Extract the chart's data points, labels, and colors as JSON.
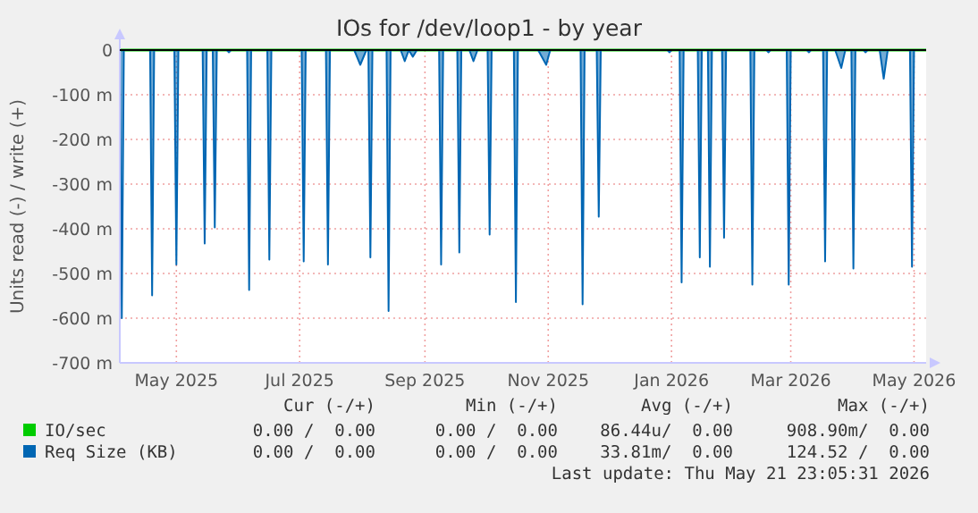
{
  "chart_data": {
    "type": "area",
    "title": "IOs for /dev/loop1 - by year",
    "ylabel": "Units read (-) / write (+)",
    "xlim": [
      "2025-04-03",
      "2026-05-07"
    ],
    "xticks": [
      {
        "value": "2025-05-01",
        "label": "May 2025"
      },
      {
        "value": "2025-07-01",
        "label": "Jul 2025"
      },
      {
        "value": "2025-09-01",
        "label": "Sep 2025"
      },
      {
        "value": "2025-11-01",
        "label": "Nov 2025"
      },
      {
        "value": "2026-01-01",
        "label": "Jan 2026"
      },
      {
        "value": "2026-03-01",
        "label": "Mar 2026"
      },
      {
        "value": "2026-05-01",
        "label": "May 2026"
      }
    ],
    "ylim": [
      -700,
      0
    ],
    "yticks": [
      {
        "value": 0,
        "label": "0"
      },
      {
        "value": -100,
        "label": "-100 m"
      },
      {
        "value": -200,
        "label": "-200 m"
      },
      {
        "value": -300,
        "label": "-300 m"
      },
      {
        "value": -400,
        "label": "-400 m"
      },
      {
        "value": -500,
        "label": "-500 m"
      },
      {
        "value": -600,
        "label": "-600 m"
      },
      {
        "value": -700,
        "label": "-700 m"
      }
    ],
    "grid": true,
    "legend": "bottom",
    "series": [
      {
        "name": "IO/sec",
        "color": "#00cc00",
        "type": "line",
        "x": [
          "2025-04-03",
          "2026-05-07"
        ],
        "values": [
          0,
          0
        ]
      },
      {
        "name": "Req Size (KB)",
        "color": "#0066b3",
        "x": [
          "2025-04-03",
          "2025-04-04",
          "2025-04-05",
          "2025-04-18",
          "2025-04-19",
          "2025-04-20",
          "2025-04-30",
          "2025-05-01",
          "2025-05-02",
          "2025-05-14",
          "2025-05-15",
          "2025-05-16",
          "2025-05-19",
          "2025-05-20",
          "2025-05-21",
          "2025-05-26",
          "2025-05-27",
          "2025-05-28",
          "2025-06-05",
          "2025-06-06",
          "2025-06-07",
          "2025-06-15",
          "2025-06-16",
          "2025-06-17",
          "2025-07-02",
          "2025-07-03",
          "2025-07-04",
          "2025-07-14",
          "2025-07-15",
          "2025-07-16",
          "2025-07-28",
          "2025-07-31",
          "2025-08-03",
          "2025-08-04",
          "2025-08-05",
          "2025-08-06",
          "2025-08-13",
          "2025-08-14",
          "2025-08-15",
          "2025-08-20",
          "2025-08-22",
          "2025-08-24",
          "2025-08-26",
          "2025-08-28",
          "2025-09-08",
          "2025-09-09",
          "2025-09-10",
          "2025-09-17",
          "2025-09-18",
          "2025-09-19",
          "2025-09-23",
          "2025-09-25",
          "2025-09-27",
          "2025-10-02",
          "2025-10-03",
          "2025-10-04",
          "2025-10-15",
          "2025-10-16",
          "2025-10-17",
          "2025-10-27",
          "2025-10-31",
          "2025-11-02",
          "2025-11-17",
          "2025-11-18",
          "2025-11-19",
          "2025-11-25",
          "2025-11-26",
          "2025-11-27",
          "2025-12-30",
          "2025-12-31",
          "2026-01-01",
          "2026-01-05",
          "2026-01-06",
          "2026-01-07",
          "2026-01-14",
          "2026-01-15",
          "2026-01-16",
          "2026-01-19",
          "2026-01-20",
          "2026-01-21",
          "2026-01-26",
          "2026-01-27",
          "2026-01-28",
          "2026-02-09",
          "2026-02-10",
          "2026-02-11",
          "2026-02-17",
          "2026-02-18",
          "2026-02-19",
          "2026-02-27",
          "2026-02-28",
          "2026-03-01",
          "2026-03-09",
          "2026-03-10",
          "2026-03-11",
          "2026-03-17",
          "2026-03-18",
          "2026-03-19",
          "2026-03-23",
          "2026-03-26",
          "2026-03-28",
          "2026-03-31",
          "2026-04-01",
          "2026-04-02",
          "2026-04-06",
          "2026-04-07",
          "2026-04-08",
          "2026-04-14",
          "2026-04-16",
          "2026-04-18",
          "2026-04-29",
          "2026-04-30",
          "2026-05-01",
          "2026-05-07"
        ],
        "values": [
          0,
          -600,
          0,
          0,
          -549,
          0,
          0,
          -480,
          0,
          0,
          -433,
          0,
          0,
          -397,
          0,
          0,
          -5,
          0,
          0,
          -537,
          0,
          0,
          -469,
          0,
          0,
          -473,
          0,
          0,
          -480,
          0,
          0,
          -33,
          0,
          0,
          -464,
          0,
          0,
          -584,
          0,
          0,
          -25,
          0,
          -15,
          0,
          0,
          -480,
          0,
          0,
          -453,
          0,
          0,
          -25,
          0,
          0,
          -413,
          0,
          0,
          -564,
          0,
          0,
          -33,
          0,
          0,
          -569,
          0,
          0,
          -373,
          0,
          0,
          -5,
          0,
          0,
          -520,
          0,
          0,
          -464,
          0,
          0,
          -485,
          0,
          0,
          -420,
          0,
          0,
          -525,
          0,
          0,
          -5,
          0,
          0,
          -525,
          0,
          0,
          -5,
          0,
          0,
          -473,
          0,
          0,
          -40,
          0,
          0,
          -489,
          0,
          0,
          -5,
          0,
          0,
          -64,
          0,
          0,
          -485,
          0,
          0
        ]
      }
    ],
    "annotations": [
      "Cur (-/+)",
      "Min (-/+)",
      "Avg (-/+)",
      "Max (-/+)",
      "0.00 /  0.00",
      "0.00 /  0.00",
      "86.44u/  0.00",
      "908.90m/  0.00",
      "0.00 /  0.00",
      "0.00 /  0.00",
      "33.81m/  0.00",
      "124.52 /  0.00",
      "Last update: Thu May 21 23:05:31 2026"
    ]
  }
}
